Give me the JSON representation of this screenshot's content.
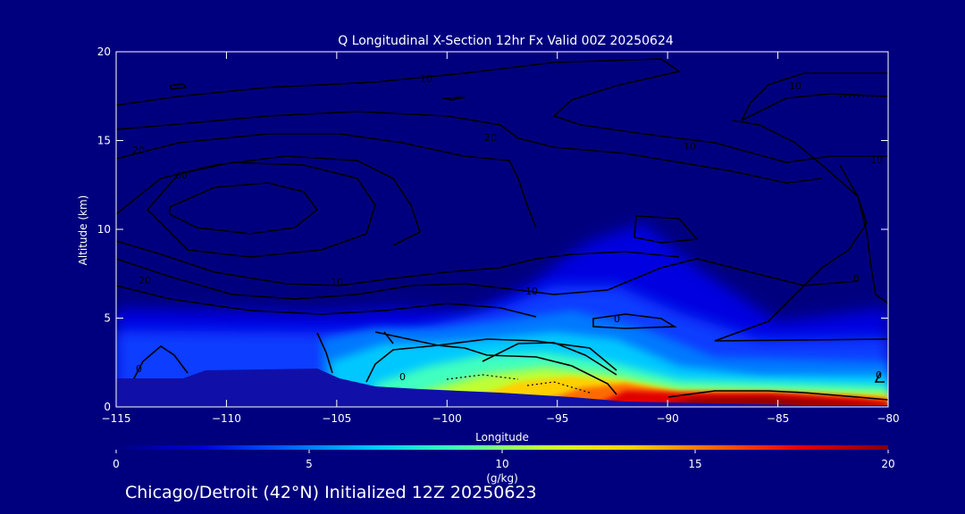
{
  "chart_data": {
    "type": "heatmap",
    "title": "Q Longitudinal X-Section 12hr  Fx Valid 00Z 20250624",
    "xlabel": "Longitude",
    "ylabel": "Altitude (km)",
    "xlim": [
      -115,
      -80
    ],
    "ylim": [
      0,
      20
    ],
    "x_ticks": [
      "-115",
      "-110",
      "-105",
      "-100",
      "-95",
      "-90",
      "-85",
      "-80"
    ],
    "y_ticks": [
      "0",
      "5",
      "10",
      "15",
      "20"
    ],
    "colorbar": {
      "label": "(g/kg)",
      "range": [
        0,
        20
      ],
      "ticks": [
        "0",
        "5",
        "10",
        "15",
        "20"
      ],
      "colors": [
        "#00007f",
        "#0000d8",
        "#0060ff",
        "#00c8ff",
        "#40ffb0",
        "#c8ff30",
        "#ffd000",
        "#ff6000",
        "#e00000",
        "#800000"
      ]
    },
    "moisture_field": [
      {
        "lon": -115,
        "alt": 3.0,
        "q": 3
      },
      {
        "lon": -106,
        "alt": 3.5,
        "q": 4
      },
      {
        "lon": -103,
        "alt": 2.5,
        "q": 7
      },
      {
        "lon": -98,
        "alt": 3.0,
        "q": 9
      },
      {
        "lon": -93,
        "alt": 5.5,
        "q": 6
      },
      {
        "lon": -92,
        "alt": 1.5,
        "q": 14
      },
      {
        "lon": -88,
        "alt": 0.5,
        "q": 17
      },
      {
        "lon": -85,
        "alt": 0.5,
        "q": 18
      },
      {
        "lon": -81,
        "alt": 0.5,
        "q": 16
      }
    ],
    "contour_labels": [
      "10",
      "10",
      "20",
      "20",
      "10",
      "30",
      "10",
      "20",
      "10",
      "10",
      "0",
      "0",
      "0",
      "0",
      "0"
    ],
    "footer": "Chicago/Detroit (42°N) Initialized 12Z 20250623"
  }
}
